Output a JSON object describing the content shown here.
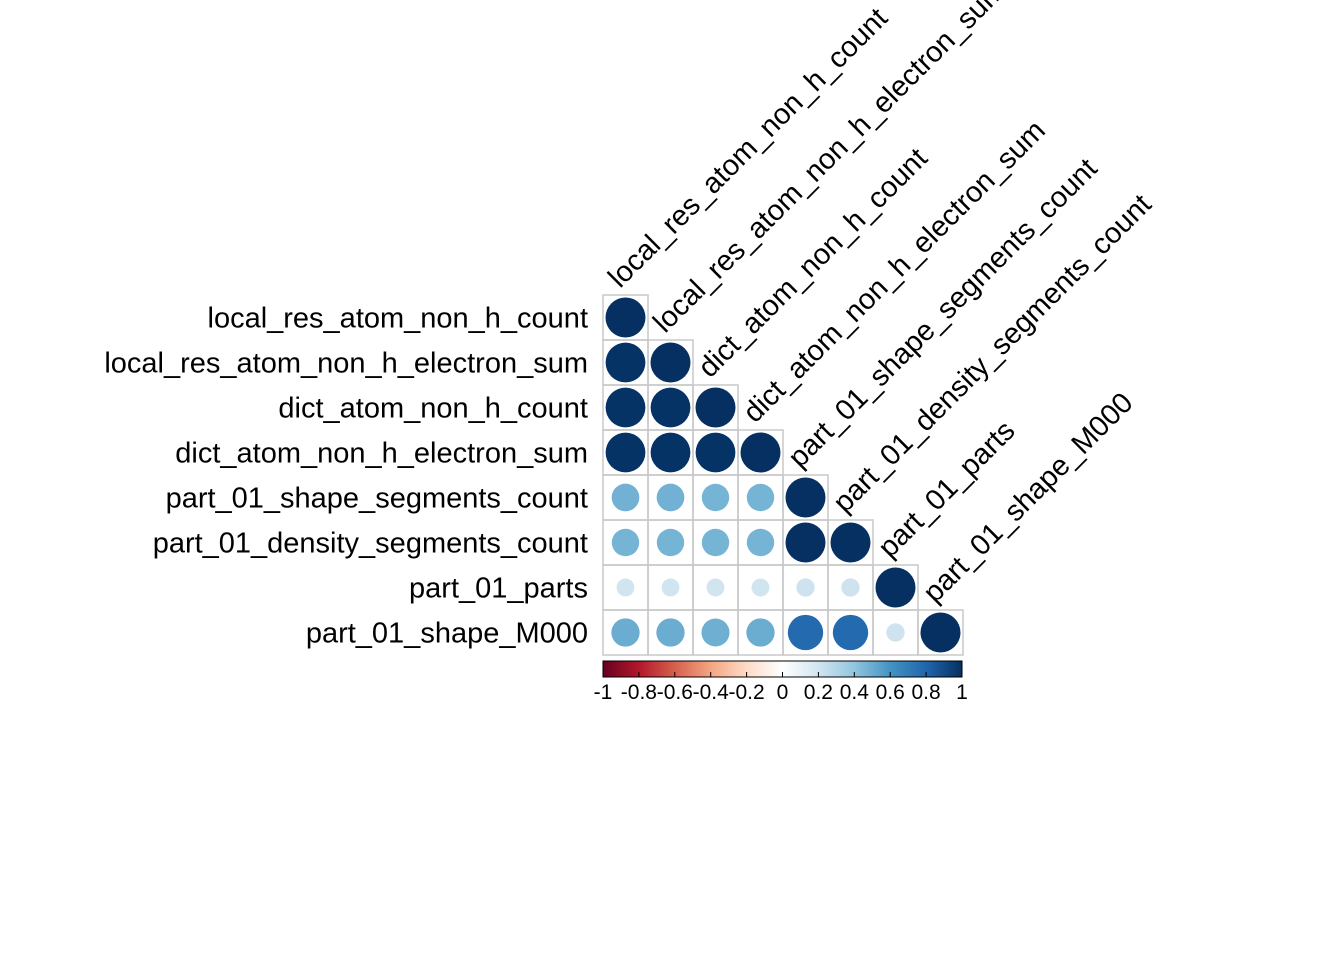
{
  "chart_data": {
    "type": "heatmap",
    "subtype": "correlation-circle-lower-triangle",
    "title": "",
    "variables": [
      "local_res_atom_non_h_count",
      "local_res_atom_non_h_electron_sum",
      "dict_atom_non_h_count",
      "dict_atom_non_h_electron_sum",
      "part_01_shape_segments_count",
      "part_01_density_segments_count",
      "part_01_parts",
      "part_01_shape_M000"
    ],
    "matrix": [
      [
        1.0,
        null,
        null,
        null,
        null,
        null,
        null,
        null
      ],
      [
        0.99,
        1.0,
        null,
        null,
        null,
        null,
        null,
        null
      ],
      [
        0.99,
        0.99,
        1.0,
        null,
        null,
        null,
        null,
        null
      ],
      [
        0.99,
        0.99,
        0.99,
        1.0,
        null,
        null,
        null,
        null
      ],
      [
        0.48,
        0.48,
        0.47,
        0.47,
        1.0,
        null,
        null,
        null
      ],
      [
        0.47,
        0.47,
        0.47,
        0.47,
        1.0,
        1.0,
        null,
        null
      ],
      [
        0.2,
        0.2,
        0.2,
        0.2,
        0.21,
        0.21,
        1.0,
        null
      ],
      [
        0.5,
        0.5,
        0.49,
        0.5,
        0.78,
        0.78,
        0.21,
        1.0
      ]
    ],
    "color_scale": {
      "range": [
        -1,
        1
      ],
      "stops": [
        "#67001F",
        "#B2182B",
        "#D6604D",
        "#F4A582",
        "#FDDBC7",
        "#FFFFFF",
        "#D1E5F0",
        "#92C5DE",
        "#4393C3",
        "#2166AC",
        "#053061"
      ],
      "tick_labels": [
        "-1",
        "-0.8",
        "-0.6",
        "-0.4",
        "-0.2",
        "0",
        "0.2",
        "0.4",
        "0.6",
        "0.8",
        "1"
      ],
      "tick_values": [
        -1,
        -0.8,
        -0.6,
        -0.4,
        -0.2,
        0,
        0.2,
        0.4,
        0.6,
        0.8,
        1
      ]
    },
    "legend_position": "bottom",
    "grid": true
  }
}
